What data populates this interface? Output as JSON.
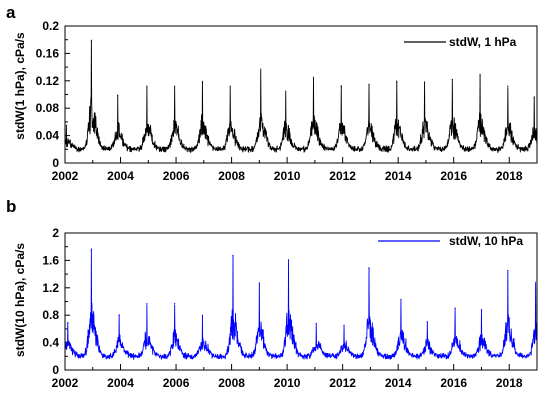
{
  "chart_data": [
    {
      "type": "line",
      "panel_label": "a",
      "ylabel": "stdW(1 hPa), cPa/s",
      "xlim": [
        2002,
        2019
      ],
      "ylim": [
        0,
        0.2
      ],
      "x_ticks": [
        2002,
        2004,
        2006,
        2008,
        2010,
        2012,
        2014,
        2016,
        2018
      ],
      "x_tick_labels": [
        "2002",
        "2004",
        "2006",
        "2008",
        "2010",
        "2012",
        "2014",
        "2016",
        "2018"
      ],
      "y_ticks": [
        0,
        0.04,
        0.08,
        0.12,
        0.16,
        0.2
      ],
      "y_tick_labels": [
        "0",
        "0.04",
        "0.08",
        "0.12",
        "0.16",
        "0.2"
      ],
      "grid": false,
      "legend_position": "top-right",
      "series": [
        {
          "name": "stdW, 1 hPa",
          "color": "#000000",
          "baseline": 0.02,
          "peaks": [
            {
              "x": 2002.05,
              "y": 0.055
            },
            {
              "x": 2002.95,
              "y": 0.178
            },
            {
              "x": 2003.9,
              "y": 0.098
            },
            {
              "x": 2004.95,
              "y": 0.112
            },
            {
              "x": 2005.95,
              "y": 0.112
            },
            {
              "x": 2006.95,
              "y": 0.118
            },
            {
              "x": 2007.95,
              "y": 0.112
            },
            {
              "x": 2009.05,
              "y": 0.137
            },
            {
              "x": 2009.95,
              "y": 0.105
            },
            {
              "x": 2010.95,
              "y": 0.125
            },
            {
              "x": 2011.95,
              "y": 0.112
            },
            {
              "x": 2012.95,
              "y": 0.115
            },
            {
              "x": 2013.95,
              "y": 0.118
            },
            {
              "x": 2014.95,
              "y": 0.118
            },
            {
              "x": 2015.95,
              "y": 0.122
            },
            {
              "x": 2016.95,
              "y": 0.128
            },
            {
              "x": 2017.95,
              "y": 0.112
            },
            {
              "x": 2018.9,
              "y": 0.095
            }
          ]
        }
      ]
    },
    {
      "type": "line",
      "panel_label": "b",
      "ylabel": "stdW(10 hPa), cPa/s",
      "xlim": [
        2002,
        2019
      ],
      "ylim": [
        0,
        2
      ],
      "x_ticks": [
        2002,
        2004,
        2006,
        2008,
        2010,
        2012,
        2014,
        2016,
        2018
      ],
      "x_tick_labels": [
        "2002",
        "2004",
        "2006",
        "2008",
        "2010",
        "2012",
        "2014",
        "2016",
        "2018"
      ],
      "y_ticks": [
        0,
        0.4,
        0.8,
        1.2,
        1.6,
        2
      ],
      "y_tick_labels": [
        "0",
        "0.4",
        "0.8",
        "1.2",
        "1.6",
        "2"
      ],
      "grid": false,
      "legend_position": "top-right",
      "series": [
        {
          "name": "stdW, 10 hPa",
          "color": "#0000ff",
          "baseline": 0.2,
          "peaks": [
            {
              "x": 2002.1,
              "y": 0.68
            },
            {
              "x": 2002.95,
              "y": 1.75
            },
            {
              "x": 2003.95,
              "y": 0.8
            },
            {
              "x": 2004.95,
              "y": 0.97
            },
            {
              "x": 2005.95,
              "y": 0.97
            },
            {
              "x": 2006.95,
              "y": 0.8
            },
            {
              "x": 2008.05,
              "y": 1.67
            },
            {
              "x": 2009.0,
              "y": 1.27
            },
            {
              "x": 2010.05,
              "y": 1.6
            },
            {
              "x": 2011.05,
              "y": 0.68
            },
            {
              "x": 2012.05,
              "y": 0.65
            },
            {
              "x": 2012.95,
              "y": 1.48
            },
            {
              "x": 2014.1,
              "y": 1.03
            },
            {
              "x": 2015.05,
              "y": 0.7
            },
            {
              "x": 2016.05,
              "y": 0.9
            },
            {
              "x": 2017.0,
              "y": 0.87
            },
            {
              "x": 2017.95,
              "y": 1.45
            },
            {
              "x": 2018.95,
              "y": 1.28
            }
          ]
        }
      ]
    }
  ]
}
